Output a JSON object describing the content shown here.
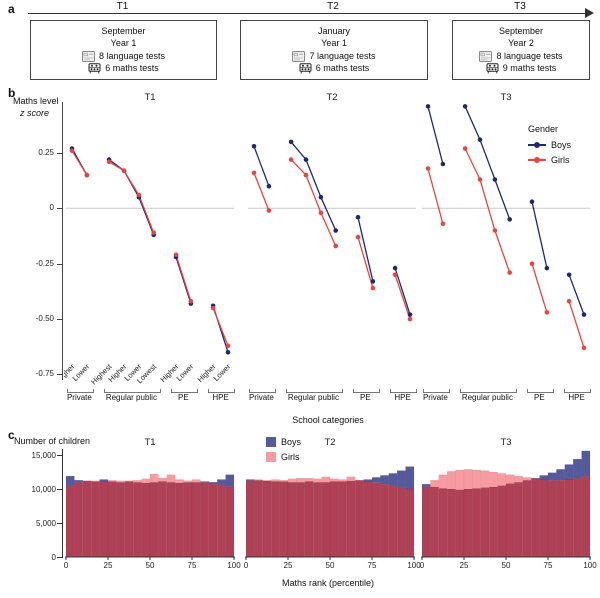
{
  "panel_a": {
    "label": "a",
    "boxes": [
      {
        "t": "T1",
        "month": "September",
        "year": "Year 1",
        "language_tests": "8 language tests",
        "maths_tests": "6 maths tests"
      },
      {
        "t": "T2",
        "month": "January",
        "year": "Year 1",
        "language_tests": "7 language tests",
        "maths_tests": "6 maths tests"
      },
      {
        "t": "T3",
        "month": "September",
        "year": "Year 2",
        "language_tests": "8 language tests",
        "maths_tests": "9 maths tests"
      }
    ]
  },
  "panel_b": {
    "label": "b",
    "ylabel_line1": "Maths level",
    "ylabel_line2": "z score",
    "xlabel": "School categories",
    "yticks": [
      "0.25",
      "0",
      "-0.25",
      "-0.50",
      "-0.75"
    ],
    "ytick_values": [
      0.25,
      0,
      -0.25,
      -0.5,
      -0.75
    ],
    "category_labels": [
      "Higher",
      "Lower",
      "Highest",
      "Higher",
      "Lower",
      "Lowest",
      "Higher",
      "Lower",
      "Higher",
      "Lower"
    ],
    "groups": [
      {
        "label": "Private",
        "size": 2
      },
      {
        "label": "Regular public",
        "size": 4
      },
      {
        "label": "PE",
        "size": 2
      },
      {
        "label": "HPE",
        "size": 2
      }
    ],
    "legend": {
      "title": "Gender",
      "items": [
        {
          "label": "Boys",
          "color": "#1f2a6e"
        },
        {
          "label": "Girls",
          "color": "#ef413d"
        }
      ]
    }
  },
  "panel_c": {
    "label": "c",
    "ylabel": "Number of children",
    "xlabel": "Maths rank (percentile)",
    "yticks": [
      {
        "label": "15,000",
        "value": 15000
      },
      {
        "label": "10,000",
        "value": 10000
      },
      {
        "label": "5,000",
        "value": 5000
      },
      {
        "label": "0",
        "value": 0
      }
    ],
    "xticks": [
      0,
      25,
      50,
      75,
      100
    ],
    "legend": [
      {
        "label": "Boys",
        "color": "#555a9d"
      },
      {
        "label": "Girls",
        "color": "#f89ba1"
      }
    ]
  },
  "colors": {
    "boys_line": "#1f2a6e",
    "girls_line": "#ef413d",
    "boys_bar": "#555a9d",
    "girls_bar": "#f89ba1",
    "overlap_bar": "#ae4156",
    "zero_line": "#c9c9c9",
    "axis": "#333333"
  },
  "chart_data": [
    {
      "type": "line",
      "panel": "b",
      "title": "T1",
      "categories": [
        "Higher",
        "Lower",
        "Highest",
        "Higher",
        "Lower",
        "Lowest",
        "Higher",
        "Lower",
        "Higher",
        "Lower"
      ],
      "groups": [
        {
          "label": "Private",
          "size": 2
        },
        {
          "label": "Regular public",
          "size": 4
        },
        {
          "label": "PE",
          "size": 2
        },
        {
          "label": "HPE",
          "size": 2
        }
      ],
      "ylabel": "Maths level z score",
      "ylim": [
        -0.8,
        0.5
      ],
      "series": [
        {
          "name": "Boys",
          "values": [
            0.27,
            0.15,
            0.22,
            0.17,
            0.05,
            -0.12,
            -0.22,
            -0.43,
            -0.44,
            -0.65
          ]
        },
        {
          "name": "Girls",
          "values": [
            0.26,
            0.15,
            0.21,
            0.17,
            0.06,
            -0.11,
            -0.21,
            -0.42,
            -0.45,
            -0.62
          ]
        }
      ]
    },
    {
      "type": "line",
      "panel": "b",
      "title": "T2",
      "categories": [
        "Higher",
        "Lower",
        "Highest",
        "Higher",
        "Lower",
        "Lowest",
        "Higher",
        "Lower",
        "Higher",
        "Lower"
      ],
      "groups": [
        {
          "label": "Private",
          "size": 2
        },
        {
          "label": "Regular public",
          "size": 4
        },
        {
          "label": "PE",
          "size": 2
        },
        {
          "label": "HPE",
          "size": 2
        }
      ],
      "ylabel": "Maths level z score",
      "ylim": [
        -0.8,
        0.5
      ],
      "series": [
        {
          "name": "Boys",
          "values": [
            0.28,
            0.1,
            0.3,
            0.22,
            0.05,
            -0.1,
            -0.04,
            -0.33,
            -0.27,
            -0.48
          ]
        },
        {
          "name": "Girls",
          "values": [
            0.16,
            -0.01,
            0.22,
            0.15,
            -0.02,
            -0.17,
            -0.13,
            -0.36,
            -0.3,
            -0.5
          ]
        }
      ]
    },
    {
      "type": "line",
      "panel": "b",
      "title": "T3",
      "categories": [
        "Higher",
        "Lower",
        "Highest",
        "Higher",
        "Lower",
        "Lowest",
        "Higher",
        "Lower",
        "Higher",
        "Lower"
      ],
      "groups": [
        {
          "label": "Private",
          "size": 2
        },
        {
          "label": "Regular public",
          "size": 4
        },
        {
          "label": "PE",
          "size": 2
        },
        {
          "label": "HPE",
          "size": 2
        }
      ],
      "ylabel": "Maths level z score",
      "ylim": [
        -0.8,
        0.5
      ],
      "series": [
        {
          "name": "Boys",
          "values": [
            0.46,
            0.2,
            0.46,
            0.31,
            0.13,
            -0.05,
            0.03,
            -0.27,
            -0.3,
            -0.48
          ]
        },
        {
          "name": "Girls",
          "values": [
            0.18,
            -0.07,
            0.27,
            0.13,
            -0.1,
            -0.29,
            -0.25,
            -0.47,
            -0.42,
            -0.63
          ]
        }
      ]
    },
    {
      "type": "bar",
      "panel": "c",
      "title": "T1",
      "bins": {
        "start": 0,
        "width": 5,
        "count": 20
      },
      "xlabel": "Maths rank (percentile)",
      "ylabel": "Number of children",
      "ylim": [
        0,
        16000
      ],
      "series": [
        {
          "name": "Boys",
          "values": [
            11900,
            11300,
            11200,
            11100,
            11400,
            11100,
            11000,
            11100,
            11000,
            10900,
            11000,
            11100,
            11000,
            10900,
            11000,
            11000,
            11100,
            11000,
            11400,
            12100
          ]
        },
        {
          "name": "Girls",
          "values": [
            10500,
            11000,
            11200,
            11200,
            11100,
            11300,
            11200,
            11200,
            11300,
            11500,
            12200,
            11600,
            12100,
            11400,
            11200,
            11400,
            11000,
            10800,
            10600,
            10300
          ]
        }
      ]
    },
    {
      "type": "bar",
      "panel": "c",
      "title": "T2",
      "bins": {
        "start": 0,
        "width": 5,
        "count": 20
      },
      "xlabel": "Maths rank (percentile)",
      "ylabel": "Number of children",
      "ylim": [
        0,
        16000
      ],
      "series": [
        {
          "name": "Boys",
          "values": [
            11400,
            11300,
            11200,
            11100,
            11100,
            11000,
            11000,
            11100,
            11000,
            11000,
            11100,
            11100,
            11200,
            11300,
            11400,
            11700,
            12000,
            12300,
            12700,
            13300
          ]
        },
        {
          "name": "Girls",
          "values": [
            11200,
            11400,
            11300,
            11400,
            11300,
            11500,
            11600,
            11600,
            11500,
            11800,
            11500,
            11400,
            11800,
            11300,
            11100,
            10900,
            10700,
            10500,
            10200,
            10000
          ]
        }
      ]
    },
    {
      "type": "bar",
      "panel": "c",
      "title": "T3",
      "bins": {
        "start": 0,
        "width": 5,
        "count": 20
      },
      "xlabel": "Maths rank (percentile)",
      "ylabel": "Number of children",
      "ylim": [
        0,
        16000
      ],
      "series": [
        {
          "name": "Boys",
          "values": [
            10700,
            10300,
            10100,
            10000,
            9900,
            10000,
            10100,
            10200,
            10300,
            10500,
            10800,
            11000,
            11300,
            11600,
            12000,
            12400,
            12900,
            13600,
            14400,
            15600
          ]
        },
        {
          "name": "Girls",
          "values": [
            10300,
            11300,
            12100,
            12600,
            12800,
            12900,
            12800,
            12700,
            12500,
            12300,
            12100,
            11900,
            11700,
            11500,
            11400,
            11300,
            11300,
            11400,
            11600,
            11900
          ]
        }
      ]
    }
  ]
}
